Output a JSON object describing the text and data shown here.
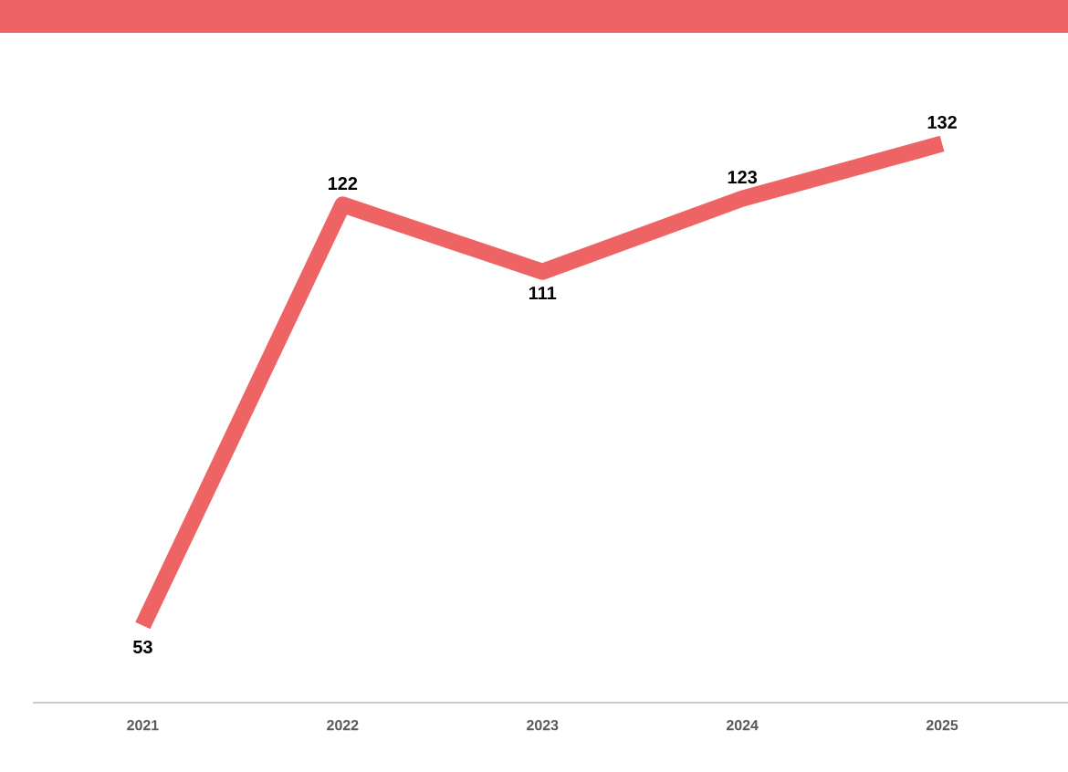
{
  "chart_data": {
    "type": "line",
    "categories": [
      "2021",
      "2022",
      "2023",
      "2024",
      "2025"
    ],
    "values": [
      53,
      122,
      111,
      123,
      132
    ],
    "color": "#ee6464",
    "data_labels": true
  }
}
